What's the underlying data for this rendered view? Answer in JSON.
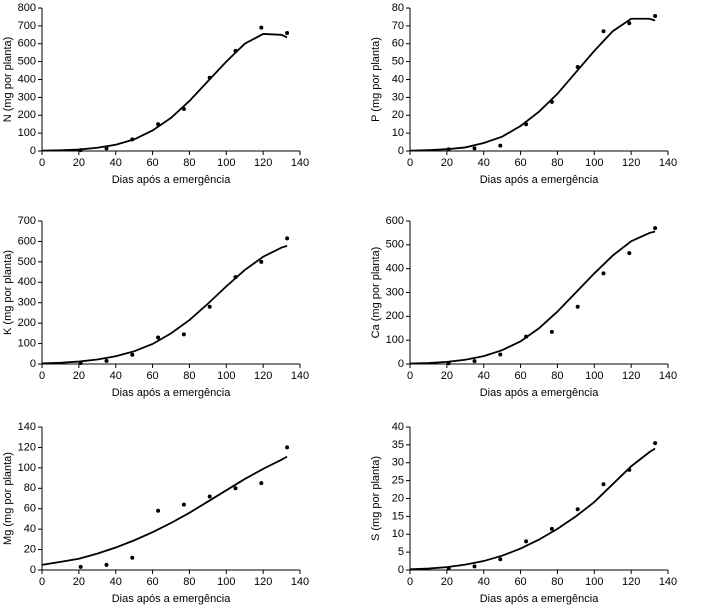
{
  "chart_data": [
    {
      "type": "scatter",
      "ylabel": "N (mg por planta)",
      "xlabel": "Dias após a emergência",
      "xlim": [
        0,
        140
      ],
      "xticks": [
        0,
        20,
        40,
        60,
        80,
        100,
        120,
        140
      ],
      "ylim": [
        0,
        800
      ],
      "yticks": [
        0,
        100,
        200,
        300,
        400,
        500,
        600,
        700,
        800
      ],
      "series": [
        {
          "type": "scatter",
          "color": "#000000",
          "x": [
            21,
            35,
            49,
            63,
            77,
            91,
            105,
            119,
            133
          ],
          "values": [
            5,
            15,
            65,
            150,
            235,
            410,
            560,
            690,
            660
          ]
        },
        {
          "type": "line",
          "color": "#000000",
          "x": [
            0,
            10,
            20,
            30,
            40,
            50,
            60,
            70,
            80,
            90,
            100,
            110,
            120,
            130,
            133
          ],
          "values": [
            2,
            4,
            8,
            18,
            35,
            65,
            115,
            185,
            280,
            390,
            500,
            600,
            655,
            650,
            635
          ]
        }
      ]
    },
    {
      "type": "scatter",
      "ylabel": "P (mg por planta)",
      "xlabel": "Dias após a emergência",
      "xlim": [
        0,
        140
      ],
      "xticks": [
        0,
        20,
        40,
        60,
        80,
        100,
        120,
        140
      ],
      "ylim": [
        0,
        80
      ],
      "yticks": [
        0,
        10,
        20,
        30,
        40,
        50,
        60,
        70,
        80
      ],
      "series": [
        {
          "type": "scatter",
          "color": "#000000",
          "x": [
            21,
            35,
            49,
            63,
            77,
            91,
            105,
            119,
            133
          ],
          "values": [
            1,
            1.5,
            3,
            15,
            27.5,
            47,
            67,
            71.5,
            75.5
          ]
        },
        {
          "type": "line",
          "color": "#000000",
          "x": [
            0,
            10,
            20,
            30,
            40,
            50,
            60,
            70,
            80,
            90,
            100,
            110,
            120,
            130,
            133
          ],
          "values": [
            0.2,
            0.5,
            1,
            2,
            4.5,
            8,
            14,
            22,
            32,
            44,
            56,
            67,
            74,
            74,
            73
          ]
        }
      ]
    },
    {
      "type": "scatter",
      "ylabel": "K (mg por planta)",
      "xlabel": "Dias após a emergência",
      "xlim": [
        0,
        140
      ],
      "xticks": [
        0,
        20,
        40,
        60,
        80,
        100,
        120,
        140
      ],
      "ylim": [
        0,
        700
      ],
      "yticks": [
        0,
        100,
        200,
        300,
        400,
        500,
        600,
        700
      ],
      "series": [
        {
          "type": "scatter",
          "color": "#000000",
          "x": [
            21,
            35,
            49,
            63,
            77,
            91,
            105,
            119,
            133
          ],
          "values": [
            5,
            15,
            45,
            130,
            145,
            280,
            425,
            500,
            615
          ]
        },
        {
          "type": "line",
          "color": "#000000",
          "x": [
            0,
            10,
            20,
            30,
            40,
            50,
            60,
            70,
            80,
            90,
            100,
            110,
            120,
            130,
            133
          ],
          "values": [
            3,
            6,
            12,
            22,
            38,
            62,
            98,
            150,
            215,
            295,
            380,
            460,
            525,
            570,
            578
          ]
        }
      ]
    },
    {
      "type": "scatter",
      "ylabel": "Ca (mg por planta)",
      "xlabel": "Dias após a emergência",
      "xlim": [
        0,
        140
      ],
      "xticks": [
        0,
        20,
        40,
        60,
        80,
        100,
        120,
        140
      ],
      "ylim": [
        0,
        600
      ],
      "yticks": [
        0,
        100,
        200,
        300,
        400,
        500,
        600
      ],
      "series": [
        {
          "type": "scatter",
          "color": "#000000",
          "x": [
            21,
            35,
            49,
            63,
            77,
            91,
            105,
            119,
            133
          ],
          "values": [
            3,
            12,
            40,
            115,
            135,
            240,
            380,
            465,
            570
          ]
        },
        {
          "type": "line",
          "color": "#000000",
          "x": [
            0,
            10,
            20,
            30,
            40,
            50,
            60,
            70,
            80,
            90,
            100,
            110,
            120,
            130,
            133
          ],
          "values": [
            2,
            4,
            9,
            18,
            33,
            58,
            95,
            150,
            220,
            300,
            380,
            455,
            515,
            550,
            556
          ]
        }
      ]
    },
    {
      "type": "scatter",
      "ylabel": "Mg (mg por planta)",
      "xlabel": "Dias após a emergência",
      "xlim": [
        0,
        140
      ],
      "xticks": [
        0,
        20,
        40,
        60,
        80,
        100,
        120,
        140
      ],
      "ylim": [
        0,
        140
      ],
      "yticks": [
        0,
        20,
        40,
        60,
        80,
        100,
        120,
        140
      ],
      "series": [
        {
          "type": "scatter",
          "color": "#000000",
          "x": [
            21,
            35,
            49,
            63,
            77,
            91,
            105,
            119,
            133
          ],
          "values": [
            3,
            5,
            12,
            58,
            64,
            72,
            80,
            85,
            120
          ]
        },
        {
          "type": "line",
          "color": "#000000",
          "x": [
            0,
            10,
            20,
            30,
            40,
            50,
            60,
            70,
            80,
            90,
            100,
            110,
            120,
            130,
            133
          ],
          "values": [
            5,
            8,
            11,
            16,
            22,
            29,
            37,
            46,
            56,
            67,
            78,
            89,
            99,
            108,
            111
          ]
        }
      ]
    },
    {
      "type": "scatter",
      "ylabel": "S (mg por planta)",
      "xlabel": "Dias após a emergência",
      "xlim": [
        0,
        140
      ],
      "xticks": [
        0,
        20,
        40,
        60,
        80,
        100,
        120,
        140
      ],
      "ylim": [
        0,
        40
      ],
      "yticks": [
        0,
        5,
        10,
        15,
        20,
        25,
        30,
        35,
        40
      ],
      "series": [
        {
          "type": "scatter",
          "color": "#000000",
          "x": [
            21,
            35,
            49,
            63,
            77,
            91,
            105,
            119,
            133
          ],
          "values": [
            0.5,
            1,
            3,
            8,
            11.5,
            17,
            24,
            28,
            35.5
          ]
        },
        {
          "type": "line",
          "color": "#000000",
          "x": [
            0,
            10,
            20,
            30,
            40,
            50,
            60,
            70,
            80,
            90,
            100,
            110,
            120,
            130,
            133
          ],
          "values": [
            0.2,
            0.4,
            0.8,
            1.5,
            2.5,
            4,
            6,
            8.5,
            11.5,
            15,
            19,
            24,
            29,
            33,
            34
          ]
        }
      ]
    }
  ]
}
